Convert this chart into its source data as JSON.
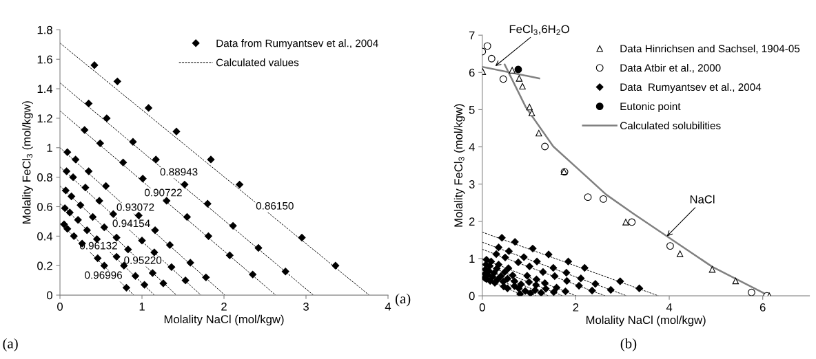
{
  "chart_data": [
    {
      "type": "scatter",
      "xlabel": "Molality NaCl (mol/kgw)",
      "ylabel": "Molality FeCl$_{3}$ (mol/kgw)",
      "xlim": [
        0,
        4
      ],
      "xticks": [
        0,
        1,
        2,
        3,
        4
      ],
      "ylim": [
        0,
        1.8
      ],
      "yticks": [
        0,
        0.2,
        0.4,
        0.6,
        0.8,
        1,
        1.2,
        1.4,
        1.6,
        1.8
      ],
      "grid": false,
      "legend": "top right",
      "series": [
        {
          "name": "Data from Rumyantsev et al., 2004",
          "color": "#000000",
          "marker": "diamond",
          "x": [
            0.42,
            0.7,
            1.08,
            1.42,
            1.84,
            2.19,
            2.95,
            3.36,
            0.35,
            0.57,
            0.89,
            1.17,
            1.52,
            1.8,
            2.11,
            2.42,
            2.75,
            0.3,
            0.49,
            0.77,
            1.01,
            1.3,
            1.55,
            1.81,
            2.07,
            2.35,
            0.09,
            0.19,
            0.35,
            0.56,
            0.96,
            1.16,
            1.34,
            1.59,
            1.78,
            0.08,
            0.16,
            0.31,
            0.48,
            0.65,
            1.0,
            1.15,
            1.36,
            1.53,
            0.07,
            0.14,
            0.25,
            0.4,
            0.54,
            0.69,
            0.83,
            1.13,
            1.26,
            0.06,
            0.12,
            0.22,
            0.33,
            0.45,
            0.69,
            0.78,
            0.92,
            1.03,
            0.05,
            0.09,
            0.17,
            0.27,
            0.46,
            0.54,
            0.81
          ],
          "values": [
            1.56,
            1.45,
            1.27,
            1.11,
            0.92,
            0.75,
            0.39,
            0.2,
            1.3,
            1.2,
            1.04,
            0.92,
            0.75,
            0.62,
            0.47,
            0.32,
            0.16,
            1.12,
            1.03,
            0.9,
            0.79,
            0.64,
            0.53,
            0.4,
            0.27,
            0.14,
            0.97,
            0.92,
            0.84,
            0.74,
            0.54,
            0.44,
            0.34,
            0.22,
            0.12,
            0.84,
            0.8,
            0.73,
            0.64,
            0.55,
            0.37,
            0.29,
            0.19,
            0.1,
            0.71,
            0.67,
            0.61,
            0.53,
            0.46,
            0.39,
            0.31,
            0.15,
            0.08,
            0.59,
            0.56,
            0.51,
            0.44,
            0.38,
            0.26,
            0.2,
            0.13,
            0.07,
            0.48,
            0.45,
            0.4,
            0.35,
            0.25,
            0.2,
            0.05
          ]
        },
        {
          "type": "line",
          "name": "Calculated values",
          "color": "#000000",
          "line_style": "dashed",
          "x": [
            0,
            3.77
          ],
          "values": [
            1.71,
            0
          ]
        },
        {
          "type": "line",
          "color": "#000000",
          "line_style": "dashed",
          "x": [
            0,
            3.09
          ],
          "values": [
            1.44,
            0
          ]
        },
        {
          "type": "line",
          "color": "#000000",
          "line_style": "dashed",
          "x": [
            0,
            2.63
          ],
          "values": [
            1.25,
            0
          ]
        },
        {
          "type": "line",
          "color": "#000000",
          "line_style": "dashed",
          "x": [
            0,
            2.01
          ],
          "values": [
            1.0,
            0
          ]
        },
        {
          "type": "line",
          "color": "#000000",
          "line_style": "dashed",
          "x": [
            0,
            1.72
          ],
          "values": [
            0.87,
            0
          ]
        },
        {
          "type": "line",
          "color": "#000000",
          "line_style": "dashed",
          "x": [
            0,
            1.42
          ],
          "values": [
            0.74,
            0
          ]
        },
        {
          "type": "line",
          "color": "#000000",
          "line_style": "dashed",
          "x": [
            0,
            1.15
          ],
          "values": [
            0.62,
            0
          ]
        },
        {
          "type": "line",
          "color": "#000000",
          "line_style": "dashed",
          "x": [
            0,
            0.9
          ],
          "values": [
            0.49,
            0
          ]
        }
      ],
      "annotations": [
        "0.86150",
        "0.88943",
        "0.90722",
        "0.93072",
        "0.94154",
        "0.95220",
        "0.96132",
        "0.96996",
        "(a)"
      ]
    },
    {
      "type": "scatter",
      "xlabel": "Molality NaCl (mol/kgw)",
      "ylabel": "Molality FeCl$_{3}$ (mol/kgw)",
      "xlim": [
        0,
        7
      ],
      "xticks": [
        0,
        2,
        4,
        6
      ],
      "ylim": [
        0,
        7
      ],
      "yticks": [
        0,
        1,
        2,
        3,
        4,
        5,
        6,
        7
      ],
      "grid": false,
      "legend": "top right",
      "series": [
        {
          "name": "Data Hinrichsen and Sachsel, 1904-05",
          "color": "#ffffff",
          "marker": "triangle",
          "x": [
            0.01,
            0.64,
            0.79,
            0.86,
            1.01,
            1.06,
            1.21,
            1.75,
            3.07,
            4.23,
            4.92,
            5.42,
            6.14
          ],
          "values": [
            6.02,
            6.06,
            5.84,
            5.63,
            5.07,
            4.91,
            4.37,
            3.34,
            1.98,
            1.13,
            0.71,
            0.4,
            0.0
          ]
        },
        {
          "name": "Data Atbir et al., 2000",
          "color": "#ffffff",
          "marker": "circle",
          "x": [
            0.0,
            0.11,
            0.2,
            0.45,
            1.34,
            1.76,
            2.26,
            2.59,
            3.2,
            4.02,
            5.76,
            6.09
          ],
          "values": [
            6.56,
            6.71,
            6.37,
            5.82,
            4.01,
            3.33,
            2.65,
            2.6,
            1.98,
            1.34,
            0.09,
            0.0
          ]
        },
        {
          "name": "Data  Rumyantsev et al., 2004",
          "color": "#000000",
          "marker": "diamond",
          "x": [
            0.42,
            0.7,
            1.08,
            1.42,
            1.84,
            2.19,
            2.95,
            3.36,
            0.35,
            0.57,
            0.89,
            1.17,
            1.52,
            1.8,
            2.11,
            2.42,
            2.75,
            0.3,
            0.49,
            0.77,
            1.01,
            1.3,
            1.55,
            1.81,
            2.07,
            2.35,
            0.09,
            0.19,
            0.35,
            0.56,
            0.96,
            1.16,
            1.34,
            1.59,
            1.78,
            0.08,
            0.16,
            0.31,
            0.48,
            0.65,
            1.0,
            1.15,
            1.36,
            1.53,
            0.07,
            0.14,
            0.25,
            0.4,
            0.54,
            0.69,
            0.83,
            1.13,
            1.26,
            0.06,
            0.12,
            0.22,
            0.33,
            0.45,
            0.69,
            0.78,
            0.92,
            1.03,
            0.05,
            0.09,
            0.17,
            0.27,
            0.46,
            0.54,
            0.81
          ],
          "values": [
            1.56,
            1.45,
            1.27,
            1.11,
            0.92,
            0.75,
            0.39,
            0.2,
            1.3,
            1.2,
            1.04,
            0.92,
            0.75,
            0.62,
            0.47,
            0.32,
            0.16,
            1.12,
            1.03,
            0.9,
            0.79,
            0.64,
            0.53,
            0.4,
            0.27,
            0.14,
            0.97,
            0.92,
            0.84,
            0.74,
            0.54,
            0.44,
            0.34,
            0.22,
            0.12,
            0.84,
            0.8,
            0.73,
            0.64,
            0.55,
            0.37,
            0.29,
            0.19,
            0.1,
            0.71,
            0.67,
            0.61,
            0.53,
            0.46,
            0.39,
            0.31,
            0.15,
            0.08,
            0.59,
            0.56,
            0.51,
            0.44,
            0.38,
            0.26,
            0.2,
            0.13,
            0.07,
            0.48,
            0.45,
            0.4,
            0.35,
            0.25,
            0.2,
            0.05
          ]
        },
        {
          "name": "Eutonic point",
          "color": "#000000",
          "marker": "circle",
          "x": [
            0.77
          ],
          "values": [
            6.08
          ]
        },
        {
          "type": "line",
          "name": "Calculated solubilities",
          "color": "#808080",
          "line_style": "solid",
          "x": [
            0.48,
            0.71,
            0.93,
            1.52,
            2.11,
            2.65,
            3.24,
            3.95,
            4.92,
            6.09
          ],
          "values": [
            6.21,
            5.63,
            5.07,
            4.01,
            3.34,
            2.72,
            2.2,
            1.6,
            0.78,
            0.03
          ]
        },
        {
          "type": "line",
          "color": "#808080",
          "line_style": "solid",
          "x": [
            0,
            1.22
          ],
          "values": [
            6.15,
            5.84
          ]
        },
        {
          "type": "line",
          "color": "#000000",
          "line_style": "dashed",
          "x": [
            0,
            3.77
          ],
          "values": [
            1.71,
            0
          ]
        },
        {
          "type": "line",
          "color": "#000000",
          "line_style": "dashed",
          "x": [
            0,
            3.09
          ],
          "values": [
            1.44,
            0
          ]
        },
        {
          "type": "line",
          "color": "#000000",
          "line_style": "dashed",
          "x": [
            0,
            2.63
          ],
          "values": [
            1.25,
            0
          ]
        },
        {
          "type": "line",
          "color": "#000000",
          "line_style": "dashed",
          "x": [
            0,
            2.01
          ],
          "values": [
            1.0,
            0
          ]
        },
        {
          "type": "line",
          "color": "#000000",
          "line_style": "dashed",
          "x": [
            0,
            1.72
          ],
          "values": [
            0.87,
            0
          ]
        },
        {
          "type": "line",
          "color": "#000000",
          "line_style": "dashed",
          "x": [
            0,
            1.42
          ],
          "values": [
            0.74,
            0
          ]
        },
        {
          "type": "line",
          "color": "#000000",
          "line_style": "dashed",
          "x": [
            0,
            1.15
          ],
          "values": [
            0.62,
            0
          ]
        },
        {
          "type": "line",
          "color": "#000000",
          "line_style": "dashed",
          "x": [
            0,
            0.9
          ],
          "values": [
            0.49,
            0
          ]
        }
      ],
      "annotations": [
        {
          "text": "FeCl$_{3}$,6H$_{2}$O",
          "x": 0.28,
          "y": 6.17
        },
        {
          "text": "NaCl",
          "x": 3.95,
          "y": 1.6
        },
        "(a)",
        "(b)"
      ]
    }
  ]
}
